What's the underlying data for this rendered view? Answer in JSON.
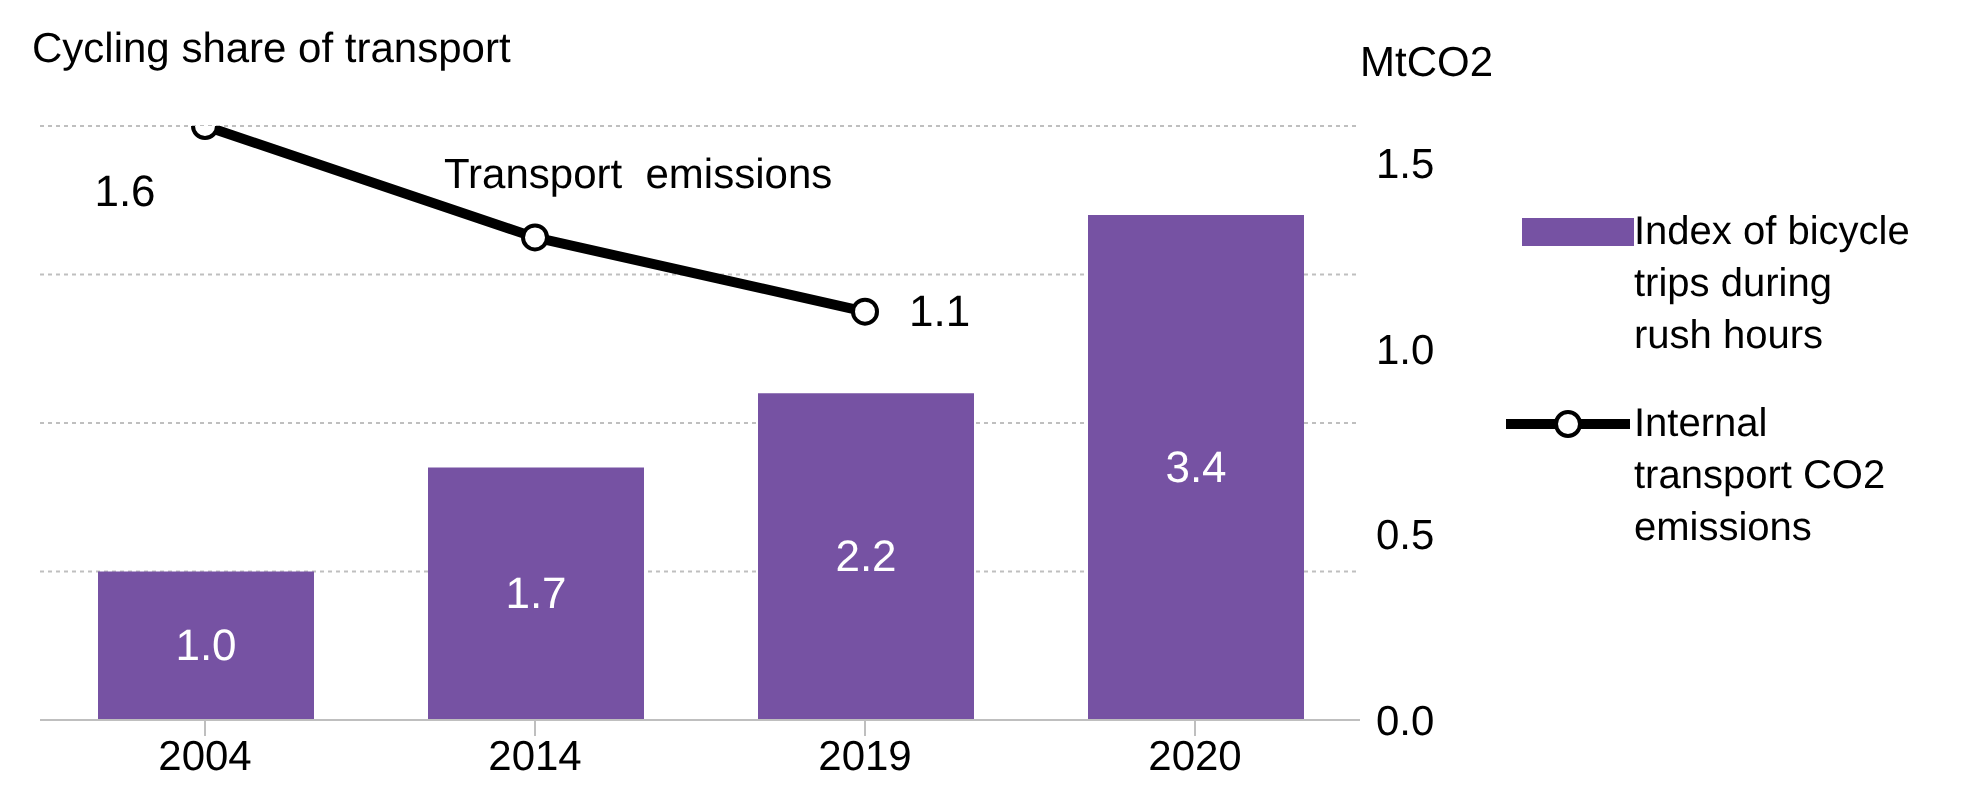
{
  "chart_data": {
    "type": "bar",
    "ylabel": "Cycling share of transport",
    "y2label": "MtCO2",
    "annotations": [
      "Transport  emissions"
    ],
    "categories": [
      "2004",
      "2014",
      "2019",
      "2020"
    ],
    "series": [
      {
        "name": "Index of bicycle trips during rush hours",
        "color": "#7652a3",
        "values": [
          1.0,
          1.7,
          2.2,
          3.4
        ],
        "value_labels": [
          "1.0",
          "1.7",
          "2.2",
          "3.4"
        ]
      },
      {
        "name": "Internal transport CO2 emissions",
        "type": "line",
        "axis": "y2",
        "color": "#000000",
        "values": [
          1.6,
          1.3,
          1.1,
          null
        ],
        "value_labels": [
          "1.6",
          null,
          "1.1",
          null
        ],
        "marker": "circle"
      }
    ],
    "ylim": [
      0,
      4
    ],
    "yticks": [
      {
        "value": 0,
        "label": null
      },
      {
        "value": 1,
        "label": null
      },
      {
        "value": 2,
        "label": null
      },
      {
        "value": 3,
        "label": null
      },
      {
        "value": 4,
        "label": null
      }
    ],
    "y2lim": [
      0,
      1.6
    ],
    "y2ticks": [
      {
        "value": 0,
        "label": "0.0"
      },
      {
        "value": 0.5,
        "label": "0.5"
      },
      {
        "value": 1,
        "label": "1.0"
      },
      {
        "value": 1.5,
        "label": "1.5"
      }
    ],
    "grid": "y",
    "legend": "right"
  }
}
